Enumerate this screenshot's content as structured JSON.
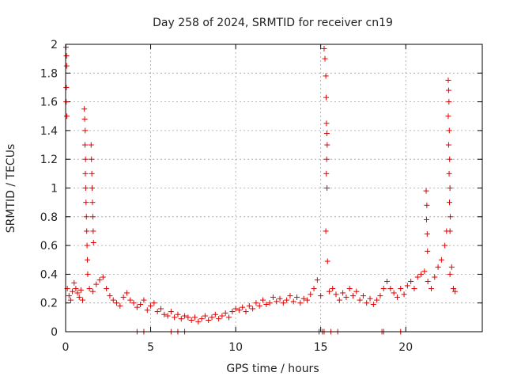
{
  "chart_data": {
    "type": "scatter",
    "title": "Day 258 of 2024, SRMTID for receiver cn19",
    "xlabel": "GPS time / hours",
    "ylabel": "SRMTID / TECUs",
    "xlim": [
      0,
      24.5
    ],
    "ylim": [
      0,
      2
    ],
    "xticks": [
      0,
      5,
      10,
      15,
      20
    ],
    "xtick_labels": [
      "0",
      "5",
      "10",
      "15",
      "20"
    ],
    "yticks": [
      0,
      0.2,
      0.4,
      0.6,
      0.8,
      1,
      1.2,
      1.4,
      1.6,
      1.8,
      2
    ],
    "ytick_labels": [
      "0",
      "0.2",
      "0.4",
      "0.6",
      "0.8",
      "1",
      "1.2",
      "1.4",
      "1.6",
      "1.8",
      "2"
    ],
    "grid": true,
    "marker": "+",
    "color": "#e00000",
    "series": [
      {
        "name": "SRMTID",
        "points": [
          [
            0.02,
            1.98
          ],
          [
            0.05,
            1.92
          ],
          [
            0.06,
            1.85
          ],
          [
            0.04,
            1.7
          ],
          [
            0.03,
            1.6
          ],
          [
            0.07,
            1.5
          ],
          [
            0.1,
            0.3
          ],
          [
            0.2,
            0.25
          ],
          [
            0.3,
            0.22
          ],
          [
            0.4,
            0.28
          ],
          [
            0.5,
            0.34
          ],
          [
            0.6,
            0.3
          ],
          [
            0.7,
            0.27
          ],
          [
            0.8,
            0.24
          ],
          [
            0.9,
            0.29
          ],
          [
            1.0,
            0.22
          ],
          [
            1.1,
            1.55
          ],
          [
            1.12,
            1.48
          ],
          [
            1.15,
            1.4
          ],
          [
            1.14,
            1.3
          ],
          [
            1.17,
            1.2
          ],
          [
            1.16,
            1.1
          ],
          [
            1.18,
            1.0
          ],
          [
            1.2,
            0.9
          ],
          [
            1.22,
            0.8
          ],
          [
            1.24,
            0.7
          ],
          [
            1.26,
            0.6
          ],
          [
            1.28,
            0.5
          ],
          [
            1.3,
            0.4
          ],
          [
            1.5,
            1.3
          ],
          [
            1.52,
            1.2
          ],
          [
            1.54,
            1.1
          ],
          [
            1.56,
            1.0
          ],
          [
            1.58,
            0.9
          ],
          [
            1.6,
            0.8
          ],
          [
            1.62,
            0.7
          ],
          [
            1.64,
            0.62
          ],
          [
            1.4,
            0.3
          ],
          [
            1.6,
            0.28
          ],
          [
            1.8,
            0.33
          ],
          [
            2.0,
            0.36
          ],
          [
            2.2,
            0.38
          ],
          [
            2.4,
            0.3
          ],
          [
            2.6,
            0.25
          ],
          [
            2.8,
            0.22
          ],
          [
            3.0,
            0.2
          ],
          [
            3.2,
            0.18
          ],
          [
            3.4,
            0.24
          ],
          [
            3.6,
            0.27
          ],
          [
            3.8,
            0.22
          ],
          [
            4.0,
            0.2
          ],
          [
            4.2,
            0.17
          ],
          [
            4.4,
            0.19
          ],
          [
            4.6,
            0.22
          ],
          [
            4.8,
            0.15
          ],
          [
            5.0,
            0.18
          ],
          [
            5.2,
            0.2
          ],
          [
            5.4,
            0.14
          ],
          [
            5.6,
            0.16
          ],
          [
            5.8,
            0.12
          ],
          [
            6.0,
            0.11
          ],
          [
            6.2,
            0.14
          ],
          [
            6.4,
            0.1
          ],
          [
            6.6,
            0.12
          ],
          [
            6.8,
            0.09
          ],
          [
            7.0,
            0.11
          ],
          [
            7.2,
            0.1
          ],
          [
            7.4,
            0.08
          ],
          [
            7.6,
            0.1
          ],
          [
            7.8,
            0.07
          ],
          [
            8.0,
            0.09
          ],
          [
            8.2,
            0.11
          ],
          [
            8.4,
            0.08
          ],
          [
            8.6,
            0.1
          ],
          [
            8.8,
            0.12
          ],
          [
            9.0,
            0.09
          ],
          [
            9.2,
            0.11
          ],
          [
            9.4,
            0.13
          ],
          [
            9.6,
            0.1
          ],
          [
            9.8,
            0.14
          ],
          [
            10.0,
            0.16
          ],
          [
            10.2,
            0.15
          ],
          [
            10.4,
            0.17
          ],
          [
            10.6,
            0.14
          ],
          [
            10.8,
            0.18
          ],
          [
            11.0,
            0.16
          ],
          [
            11.2,
            0.2
          ],
          [
            11.4,
            0.18
          ],
          [
            11.6,
            0.22
          ],
          [
            11.8,
            0.19
          ],
          [
            12.0,
            0.2
          ],
          [
            12.2,
            0.24
          ],
          [
            12.4,
            0.21
          ],
          [
            12.6,
            0.23
          ],
          [
            12.8,
            0.2
          ],
          [
            13.0,
            0.22
          ],
          [
            13.2,
            0.25
          ],
          [
            13.4,
            0.21
          ],
          [
            13.6,
            0.24
          ],
          [
            13.8,
            0.2
          ],
          [
            14.0,
            0.23
          ],
          [
            14.2,
            0.22
          ],
          [
            14.4,
            0.26
          ],
          [
            14.6,
            0.3
          ],
          [
            14.8,
            0.36
          ],
          [
            15.0,
            0.25
          ],
          [
            15.2,
            1.97
          ],
          [
            15.25,
            1.9
          ],
          [
            15.3,
            1.78
          ],
          [
            15.32,
            1.63
          ],
          [
            15.34,
            1.45
          ],
          [
            15.36,
            1.38
          ],
          [
            15.38,
            1.3
          ],
          [
            15.35,
            1.2
          ],
          [
            15.33,
            1.1
          ],
          [
            15.37,
            1.0
          ],
          [
            15.3,
            0.7
          ],
          [
            15.4,
            0.49
          ],
          [
            15.5,
            0.28
          ],
          [
            15.7,
            0.3
          ],
          [
            15.9,
            0.26
          ],
          [
            16.1,
            0.22
          ],
          [
            16.3,
            0.27
          ],
          [
            16.5,
            0.24
          ],
          [
            16.7,
            0.3
          ],
          [
            16.9,
            0.25
          ],
          [
            17.1,
            0.28
          ],
          [
            17.3,
            0.22
          ],
          [
            17.5,
            0.25
          ],
          [
            17.7,
            0.2
          ],
          [
            17.9,
            0.23
          ],
          [
            18.1,
            0.19
          ],
          [
            18.3,
            0.22
          ],
          [
            18.5,
            0.25
          ],
          [
            18.7,
            0.3
          ],
          [
            18.9,
            0.35
          ],
          [
            19.1,
            0.3
          ],
          [
            19.3,
            0.27
          ],
          [
            19.5,
            0.24
          ],
          [
            19.7,
            0.3
          ],
          [
            19.9,
            0.26
          ],
          [
            20.1,
            0.32
          ],
          [
            20.3,
            0.35
          ],
          [
            20.5,
            0.3
          ],
          [
            20.7,
            0.38
          ],
          [
            20.9,
            0.4
          ],
          [
            21.1,
            0.42
          ],
          [
            21.3,
            0.35
          ],
          [
            21.2,
            0.98
          ],
          [
            21.24,
            0.88
          ],
          [
            21.22,
            0.78
          ],
          [
            21.26,
            0.68
          ],
          [
            21.28,
            0.56
          ],
          [
            21.5,
            0.3
          ],
          [
            21.7,
            0.38
          ],
          [
            21.9,
            0.45
          ],
          [
            22.1,
            0.5
          ],
          [
            22.3,
            0.6
          ],
          [
            22.4,
            0.7
          ],
          [
            22.5,
            1.75
          ],
          [
            22.52,
            1.68
          ],
          [
            22.54,
            1.6
          ],
          [
            22.5,
            1.5
          ],
          [
            22.56,
            1.4
          ],
          [
            22.52,
            1.3
          ],
          [
            22.58,
            1.2
          ],
          [
            22.55,
            1.1
          ],
          [
            22.6,
            1.0
          ],
          [
            22.57,
            0.9
          ],
          [
            22.62,
            0.8
          ],
          [
            22.6,
            0.7
          ],
          [
            22.6,
            0.4
          ],
          [
            22.7,
            0.45
          ],
          [
            22.8,
            0.3
          ],
          [
            22.9,
            0.28
          ]
        ]
      }
    ],
    "zero_markers_x": [
      4.2,
      4.6,
      6.2,
      6.6,
      7.0,
      14.9,
      15.1,
      15.2,
      15.6,
      16.0,
      18.6,
      18.7,
      19.7
    ]
  }
}
